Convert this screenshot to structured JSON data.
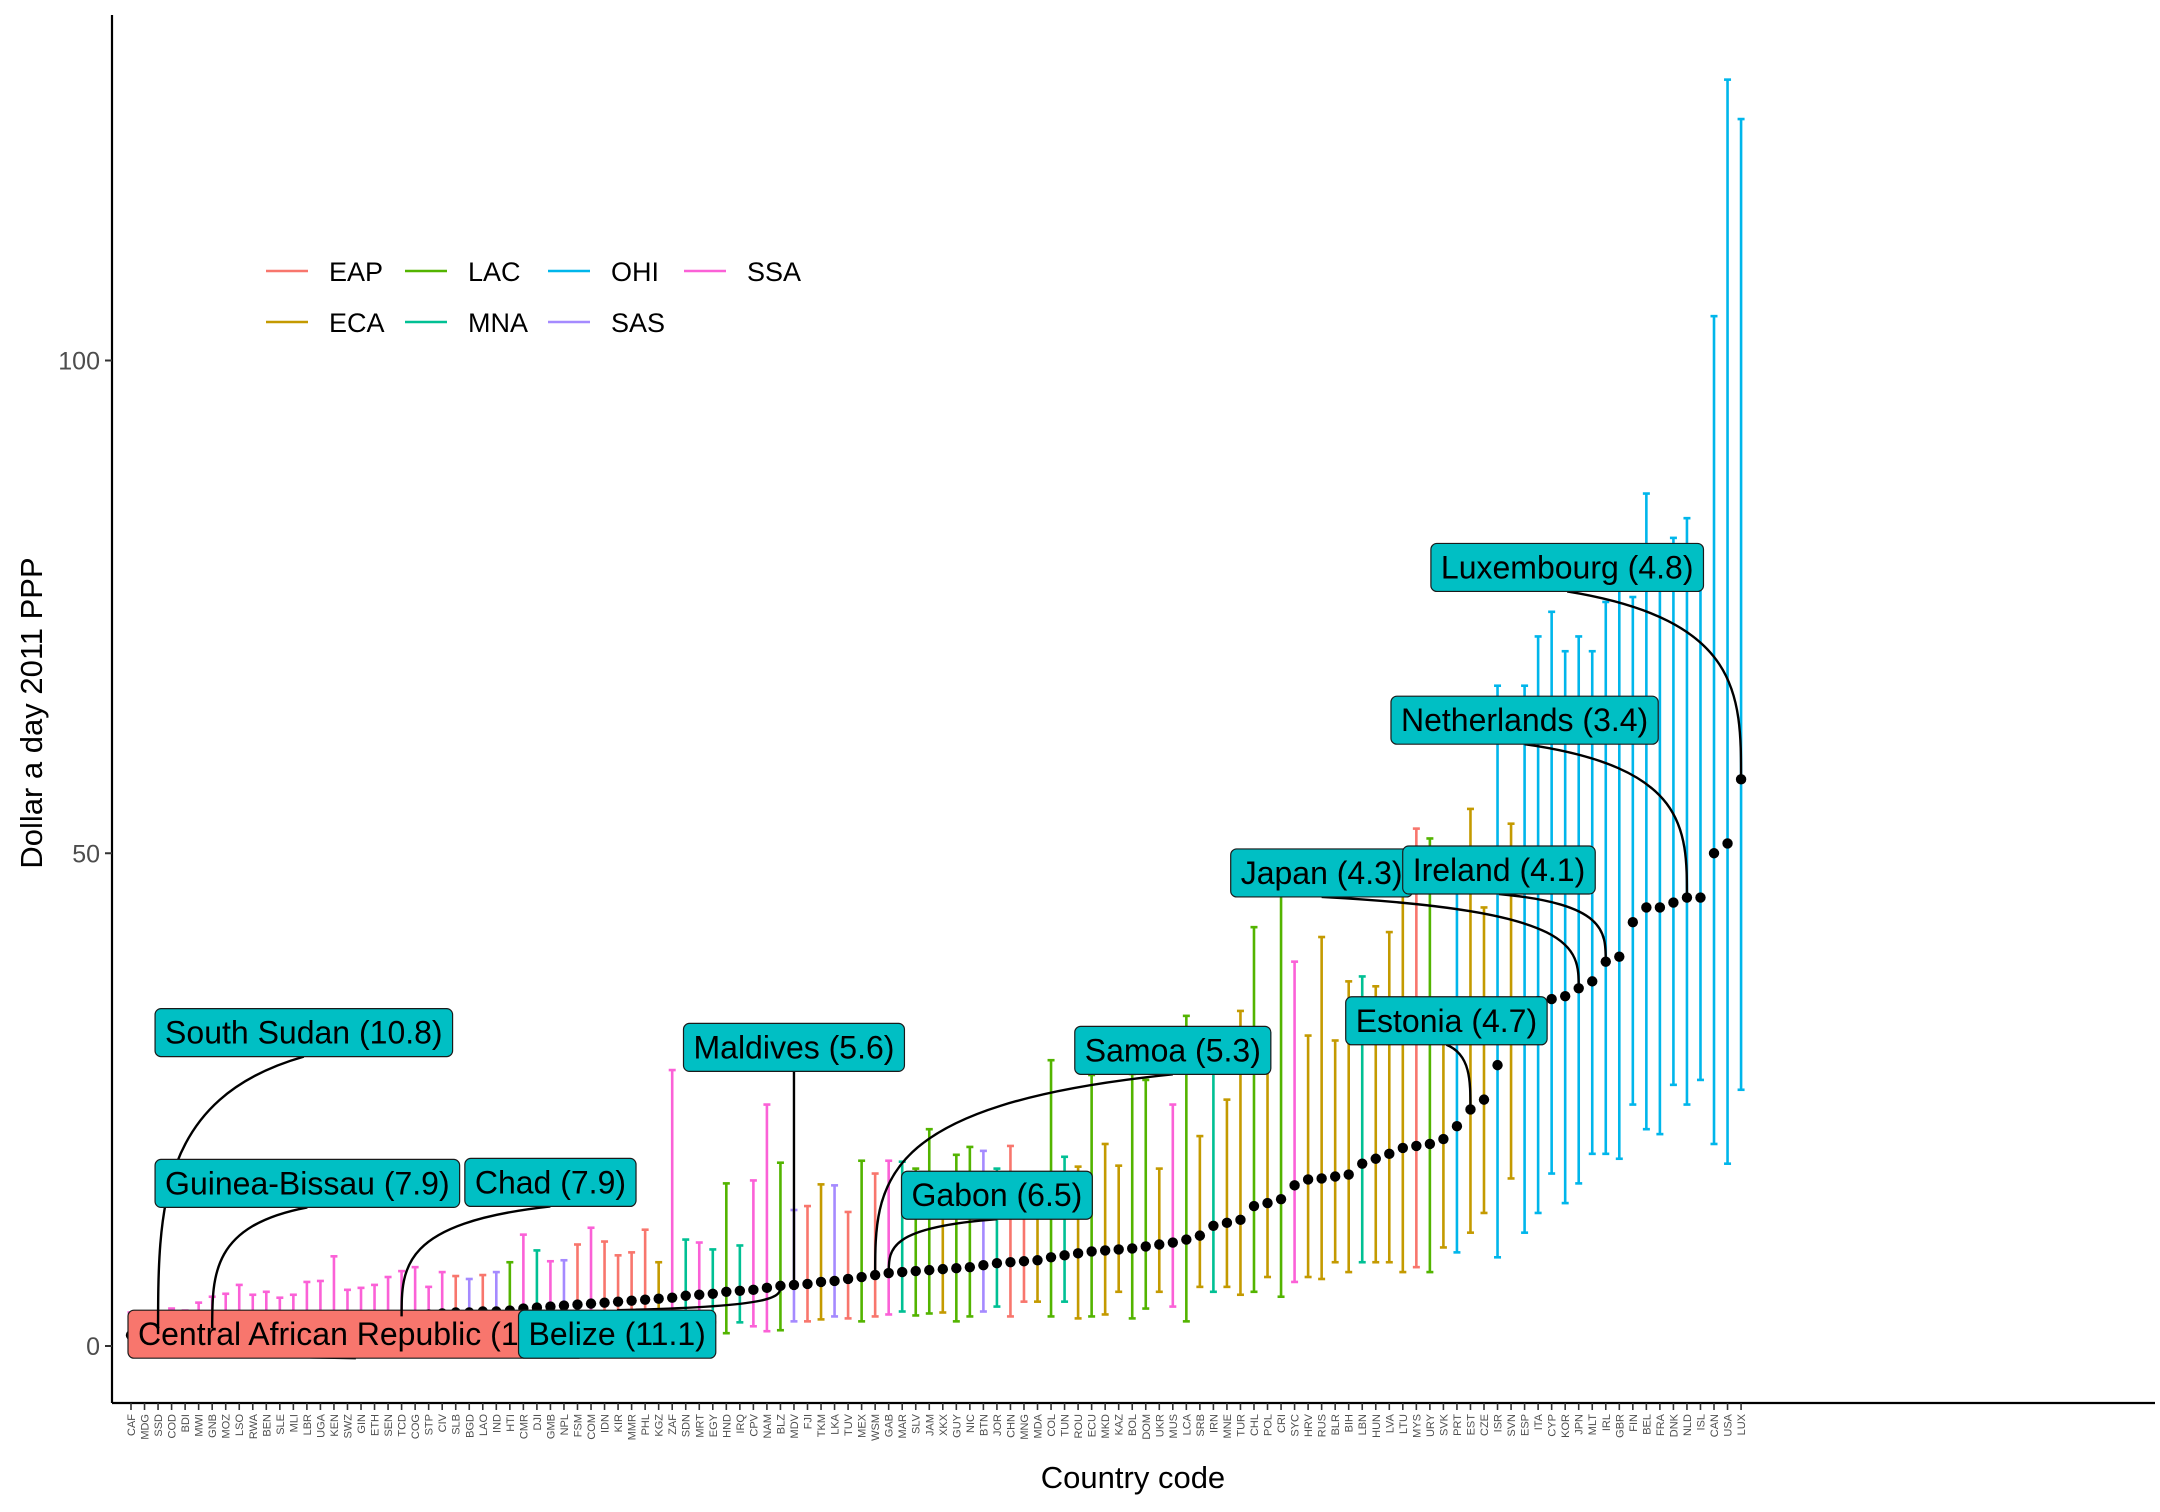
{
  "chart_data": {
    "type": "scatter",
    "title": "",
    "xlabel": "Country code",
    "ylabel": "Dollar a day 2011 PPP",
    "ylim": [
      -6,
      135
    ],
    "yticks": [
      0,
      50,
      100
    ],
    "grid": false,
    "legend_position": "top-left",
    "legend": [
      {
        "name": "EAP",
        "color": "#F8766D"
      },
      {
        "name": "ECA",
        "color": "#C49A00"
      },
      {
        "name": "LAC",
        "color": "#53B400"
      },
      {
        "name": "MNA",
        "color": "#00C094"
      },
      {
        "name": "OHI",
        "color": "#00B6EB"
      },
      {
        "name": "SAS",
        "color": "#A58AFF"
      },
      {
        "name": "SSA",
        "color": "#FB61D7"
      }
    ],
    "point_color": "#000000",
    "countries": [
      {
        "code": "CAF",
        "region": "SSA",
        "y": 1.1,
        "lo": 0.3,
        "hi": 3.4
      },
      {
        "code": "MDG",
        "region": "SSA",
        "y": 1.2,
        "lo": 0.4,
        "hi": 3.2
      },
      {
        "code": "SSD",
        "region": "SSA",
        "y": 1.2,
        "lo": 0.4,
        "hi": 3.5
      },
      {
        "code": "COD",
        "region": "SSA",
        "y": 1.5,
        "lo": 0.5,
        "hi": 3.8
      },
      {
        "code": "BDI",
        "region": "SSA",
        "y": 1.6,
        "lo": 0.5,
        "hi": 3.6
      },
      {
        "code": "MWI",
        "region": "SSA",
        "y": 1.7,
        "lo": 0.6,
        "hi": 4.4
      },
      {
        "code": "GNB",
        "region": "SSA",
        "y": 1.8,
        "lo": 0.6,
        "hi": 5.0
      },
      {
        "code": "MOZ",
        "region": "SSA",
        "y": 1.9,
        "lo": 0.6,
        "hi": 5.3
      },
      {
        "code": "LSO",
        "region": "SSA",
        "y": 2.0,
        "lo": 0.5,
        "hi": 6.2
      },
      {
        "code": "RWA",
        "region": "SSA",
        "y": 2.1,
        "lo": 0.7,
        "hi": 5.2
      },
      {
        "code": "BEN",
        "region": "SSA",
        "y": 2.2,
        "lo": 0.8,
        "hi": 5.5
      },
      {
        "code": "SLE",
        "region": "SSA",
        "y": 2.3,
        "lo": 0.8,
        "hi": 4.9
      },
      {
        "code": "MLI",
        "region": "SSA",
        "y": 2.4,
        "lo": 0.9,
        "hi": 5.2
      },
      {
        "code": "LBR",
        "region": "SSA",
        "y": 2.4,
        "lo": 0.8,
        "hi": 6.5
      },
      {
        "code": "UGA",
        "region": "SSA",
        "y": 2.5,
        "lo": 0.9,
        "hi": 6.6
      },
      {
        "code": "KEN",
        "region": "SSA",
        "y": 2.6,
        "lo": 0.8,
        "hi": 9.1
      },
      {
        "code": "SWZ",
        "region": "SSA",
        "y": 2.7,
        "lo": 0.8,
        "hi": 5.7
      },
      {
        "code": "GIN",
        "region": "SSA",
        "y": 2.8,
        "lo": 1.0,
        "hi": 5.9
      },
      {
        "code": "ETH",
        "region": "SSA",
        "y": 2.9,
        "lo": 1.0,
        "hi": 6.2
      },
      {
        "code": "SEN",
        "region": "SSA",
        "y": 3.0,
        "lo": 1.0,
        "hi": 7.0
      },
      {
        "code": "TCD",
        "region": "SSA",
        "y": 3.0,
        "lo": 1.0,
        "hi": 7.6
      },
      {
        "code": "COG",
        "region": "SSA",
        "y": 3.1,
        "lo": 0.9,
        "hi": 8.0
      },
      {
        "code": "STP",
        "region": "SSA",
        "y": 3.2,
        "lo": 1.2,
        "hi": 6.0
      },
      {
        "code": "CIV",
        "region": "SSA",
        "y": 3.3,
        "lo": 1.1,
        "hi": 7.5
      },
      {
        "code": "SLB",
        "region": "EAP",
        "y": 3.4,
        "lo": 1.2,
        "hi": 7.1
      },
      {
        "code": "BGD",
        "region": "SAS",
        "y": 3.4,
        "lo": 1.5,
        "hi": 6.8
      },
      {
        "code": "LAO",
        "region": "EAP",
        "y": 3.5,
        "lo": 1.3,
        "hi": 7.2
      },
      {
        "code": "IND",
        "region": "SAS",
        "y": 3.5,
        "lo": 1.5,
        "hi": 7.5
      },
      {
        "code": "HTI",
        "region": "LAC",
        "y": 3.6,
        "lo": 0.9,
        "hi": 8.5
      },
      {
        "code": "CMR",
        "region": "SSA",
        "y": 3.8,
        "lo": 1.2,
        "hi": 11.3
      },
      {
        "code": "DJI",
        "region": "MNA",
        "y": 3.9,
        "lo": 1.4,
        "hi": 9.7
      },
      {
        "code": "GMB",
        "region": "SSA",
        "y": 4.0,
        "lo": 1.3,
        "hi": 8.6
      },
      {
        "code": "NPL",
        "region": "SAS",
        "y": 4.1,
        "lo": 1.7,
        "hi": 8.7
      },
      {
        "code": "FSM",
        "region": "EAP",
        "y": 4.2,
        "lo": 1.4,
        "hi": 10.3
      },
      {
        "code": "COM",
        "region": "SSA",
        "y": 4.3,
        "lo": 1.4,
        "hi": 12.0
      },
      {
        "code": "IDN",
        "region": "EAP",
        "y": 4.4,
        "lo": 1.8,
        "hi": 10.6
      },
      {
        "code": "KIR",
        "region": "EAP",
        "y": 4.5,
        "lo": 1.7,
        "hi": 9.2
      },
      {
        "code": "MMR",
        "region": "EAP",
        "y": 4.6,
        "lo": 1.8,
        "hi": 9.5
      },
      {
        "code": "PHL",
        "region": "EAP",
        "y": 4.7,
        "lo": 1.7,
        "hi": 11.8
      },
      {
        "code": "KGZ",
        "region": "ECA",
        "y": 4.8,
        "lo": 2.5,
        "hi": 8.5
      },
      {
        "code": "ZAF",
        "region": "SSA",
        "y": 4.9,
        "lo": 1.2,
        "hi": 28.0
      },
      {
        "code": "SDN",
        "region": "MNA",
        "y": 5.1,
        "lo": 2.0,
        "hi": 10.8
      },
      {
        "code": "MRT",
        "region": "SSA",
        "y": 5.2,
        "lo": 2.0,
        "hi": 10.5
      },
      {
        "code": "EGY",
        "region": "MNA",
        "y": 5.3,
        "lo": 2.4,
        "hi": 9.8
      },
      {
        "code": "HND",
        "region": "LAC",
        "y": 5.5,
        "lo": 1.3,
        "hi": 16.5
      },
      {
        "code": "IRQ",
        "region": "MNA",
        "y": 5.6,
        "lo": 2.4,
        "hi": 10.2
      },
      {
        "code": "CPV",
        "region": "SSA",
        "y": 5.7,
        "lo": 2.0,
        "hi": 16.8
      },
      {
        "code": "NAM",
        "region": "SSA",
        "y": 5.9,
        "lo": 1.5,
        "hi": 24.5
      },
      {
        "code": "BLZ",
        "region": "LAC",
        "y": 6.1,
        "lo": 1.6,
        "hi": 18.6
      },
      {
        "code": "MDV",
        "region": "SAS",
        "y": 6.2,
        "lo": 2.5,
        "hi": 13.8
      },
      {
        "code": "FJI",
        "region": "EAP",
        "y": 6.3,
        "lo": 2.5,
        "hi": 14.2
      },
      {
        "code": "TKM",
        "region": "ECA",
        "y": 6.5,
        "lo": 2.7,
        "hi": 16.4
      },
      {
        "code": "LKA",
        "region": "SAS",
        "y": 6.6,
        "lo": 3.0,
        "hi": 16.3
      },
      {
        "code": "TUV",
        "region": "EAP",
        "y": 6.8,
        "lo": 2.8,
        "hi": 13.6
      },
      {
        "code": "MEX",
        "region": "LAC",
        "y": 7.0,
        "lo": 2.5,
        "hi": 18.8
      },
      {
        "code": "WSM",
        "region": "EAP",
        "y": 7.2,
        "lo": 3.0,
        "hi": 17.5
      },
      {
        "code": "GAB",
        "region": "SSA",
        "y": 7.4,
        "lo": 3.2,
        "hi": 18.8
      },
      {
        "code": "MAR",
        "region": "MNA",
        "y": 7.5,
        "lo": 3.5,
        "hi": 18.7
      },
      {
        "code": "SLV",
        "region": "LAC",
        "y": 7.6,
        "lo": 3.1,
        "hi": 18.0
      },
      {
        "code": "JAM",
        "region": "LAC",
        "y": 7.7,
        "lo": 3.3,
        "hi": 22.0
      },
      {
        "code": "XKX",
        "region": "ECA",
        "y": 7.8,
        "lo": 3.4,
        "hi": 16.8
      },
      {
        "code": "GUY",
        "region": "LAC",
        "y": 7.9,
        "lo": 2.5,
        "hi": 19.4
      },
      {
        "code": "NIC",
        "region": "LAC",
        "y": 8.0,
        "lo": 3.0,
        "hi": 20.2
      },
      {
        "code": "BTN",
        "region": "SAS",
        "y": 8.2,
        "lo": 3.5,
        "hi": 19.8
      },
      {
        "code": "JOR",
        "region": "MNA",
        "y": 8.4,
        "lo": 4.0,
        "hi": 18.0
      },
      {
        "code": "CHN",
        "region": "EAP",
        "y": 8.5,
        "lo": 3.0,
        "hi": 20.3
      },
      {
        "code": "MNG",
        "region": "EAP",
        "y": 8.6,
        "lo": 4.5,
        "hi": 16.0
      },
      {
        "code": "MDA",
        "region": "ECA",
        "y": 8.7,
        "lo": 4.5,
        "hi": 16.8
      },
      {
        "code": "COL",
        "region": "LAC",
        "y": 9.0,
        "lo": 3.0,
        "hi": 29.0
      },
      {
        "code": "TUN",
        "region": "MNA",
        "y": 9.2,
        "lo": 4.5,
        "hi": 19.2
      },
      {
        "code": "ROU",
        "region": "ECA",
        "y": 9.4,
        "lo": 2.8,
        "hi": 18.2
      },
      {
        "code": "ECU",
        "region": "LAC",
        "y": 9.6,
        "lo": 3.0,
        "hi": 27.5
      },
      {
        "code": "MKD",
        "region": "ECA",
        "y": 9.7,
        "lo": 3.2,
        "hi": 20.5
      },
      {
        "code": "KAZ",
        "region": "ECA",
        "y": 9.8,
        "lo": 5.5,
        "hi": 18.3
      },
      {
        "code": "BOL",
        "region": "LAC",
        "y": 9.9,
        "lo": 2.8,
        "hi": 27.6
      },
      {
        "code": "DOM",
        "region": "LAC",
        "y": 10.1,
        "lo": 3.8,
        "hi": 27.0
      },
      {
        "code": "UKR",
        "region": "ECA",
        "y": 10.3,
        "lo": 5.5,
        "hi": 18.0
      },
      {
        "code": "MUS",
        "region": "SSA",
        "y": 10.5,
        "lo": 4.0,
        "hi": 24.5
      },
      {
        "code": "LCA",
        "region": "LAC",
        "y": 10.8,
        "lo": 2.5,
        "hi": 33.5
      },
      {
        "code": "SRB",
        "region": "ECA",
        "y": 11.2,
        "lo": 6.0,
        "hi": 21.3
      },
      {
        "code": "IRN",
        "region": "MNA",
        "y": 12.2,
        "lo": 5.5,
        "hi": 28.0
      },
      {
        "code": "MNE",
        "region": "ECA",
        "y": 12.5,
        "lo": 6.0,
        "hi": 25.0
      },
      {
        "code": "TUR",
        "region": "ECA",
        "y": 12.8,
        "lo": 5.2,
        "hi": 34.0
      },
      {
        "code": "CHL",
        "region": "LAC",
        "y": 14.2,
        "lo": 5.5,
        "hi": 42.5
      },
      {
        "code": "POL",
        "region": "ECA",
        "y": 14.5,
        "lo": 7.0,
        "hi": 29.5
      },
      {
        "code": "CRI",
        "region": "LAC",
        "y": 14.9,
        "lo": 5.0,
        "hi": 46.5
      },
      {
        "code": "SYC",
        "region": "SSA",
        "y": 16.3,
        "lo": 6.5,
        "hi": 39.0
      },
      {
        "code": "HRV",
        "region": "ECA",
        "y": 16.9,
        "lo": 7.0,
        "hi": 31.5
      },
      {
        "code": "RUS",
        "region": "ECA",
        "y": 17.0,
        "lo": 6.8,
        "hi": 41.5
      },
      {
        "code": "BLR",
        "region": "ECA",
        "y": 17.2,
        "lo": 8.5,
        "hi": 31.0
      },
      {
        "code": "BIH",
        "region": "ECA",
        "y": 17.4,
        "lo": 7.5,
        "hi": 37.0
      },
      {
        "code": "LBN",
        "region": "MNA",
        "y": 18.5,
        "lo": 8.5,
        "hi": 37.5
      },
      {
        "code": "HUN",
        "region": "ECA",
        "y": 19.0,
        "lo": 8.5,
        "hi": 36.5
      },
      {
        "code": "LVA",
        "region": "ECA",
        "y": 19.5,
        "lo": 8.5,
        "hi": 42.0
      },
      {
        "code": "LTU",
        "region": "ECA",
        "y": 20.1,
        "lo": 7.5,
        "hi": 46.5
      },
      {
        "code": "MYS",
        "region": "EAP",
        "y": 20.3,
        "lo": 8.0,
        "hi": 52.5
      },
      {
        "code": "URY",
        "region": "LAC",
        "y": 20.5,
        "lo": 7.5,
        "hi": 51.5
      },
      {
        "code": "SVK",
        "region": "ECA",
        "y": 21.0,
        "lo": 10.0,
        "hi": 33.0
      },
      {
        "code": "PRT",
        "region": "OHI",
        "y": 22.3,
        "lo": 9.5,
        "hi": 48.5
      },
      {
        "code": "EST",
        "region": "ECA",
        "y": 24.0,
        "lo": 11.5,
        "hi": 54.5
      },
      {
        "code": "CZE",
        "region": "ECA",
        "y": 25.0,
        "lo": 13.5,
        "hi": 44.5
      },
      {
        "code": "ISR",
        "region": "OHI",
        "y": 28.5,
        "lo": 9.0,
        "hi": 67.0
      },
      {
        "code": "SVN",
        "region": "ECA",
        "y": 31.2,
        "lo": 17.0,
        "hi": 53.0
      },
      {
        "code": "ESP",
        "region": "OHI",
        "y": 31.5,
        "lo": 11.5,
        "hi": 67.0
      },
      {
        "code": "ITA",
        "region": "OHI",
        "y": 35.0,
        "lo": 13.5,
        "hi": 72.0
      },
      {
        "code": "CYP",
        "region": "OHI",
        "y": 35.2,
        "lo": 17.5,
        "hi": 74.5
      },
      {
        "code": "KOR",
        "region": "OHI",
        "y": 35.5,
        "lo": 14.5,
        "hi": 70.5
      },
      {
        "code": "JPN",
        "region": "OHI",
        "y": 36.3,
        "lo": 16.5,
        "hi": 72.0
      },
      {
        "code": "MLT",
        "region": "OHI",
        "y": 37.0,
        "lo": 19.5,
        "hi": 70.5
      },
      {
        "code": "IRL",
        "region": "OHI",
        "y": 39.0,
        "lo": 19.5,
        "hi": 75.5
      },
      {
        "code": "GBR",
        "region": "OHI",
        "y": 39.5,
        "lo": 19.0,
        "hi": 77.5
      },
      {
        "code": "FIN",
        "region": "OHI",
        "y": 43.0,
        "lo": 24.5,
        "hi": 76.0
      },
      {
        "code": "BEL",
        "region": "OHI",
        "y": 44.5,
        "lo": 22.0,
        "hi": 86.5
      },
      {
        "code": "FRA",
        "region": "OHI",
        "y": 44.5,
        "lo": 21.5,
        "hi": 80.0
      },
      {
        "code": "DNK",
        "region": "OHI",
        "y": 45.0,
        "lo": 26.5,
        "hi": 82.0
      },
      {
        "code": "NLD",
        "region": "OHI",
        "y": 45.5,
        "lo": 24.5,
        "hi": 84.0
      },
      {
        "code": "ISL",
        "region": "OHI",
        "y": 45.5,
        "lo": 27.0,
        "hi": 78.5
      },
      {
        "code": "CAN",
        "region": "OHI",
        "y": 50.0,
        "lo": 20.5,
        "hi": 104.5
      },
      {
        "code": "USA",
        "region": "OHI",
        "y": 51.0,
        "lo": 18.5,
        "hi": 128.5
      },
      {
        "code": "LUX",
        "region": "OHI",
        "y": 57.5,
        "lo": 26.0,
        "hi": 124.5
      }
    ],
    "annotations": [
      {
        "label": "Central African Republic (10.9)",
        "target": "CAF",
        "fill": "#F8766D",
        "lx": "CAF",
        "ly": 1.2,
        "anchor": "start"
      },
      {
        "label": "South Sudan (10.8)",
        "target": "SSD",
        "fill": "#00BFC4",
        "lx": "SSD",
        "ly": 31.8,
        "anchor": "start"
      },
      {
        "label": "Guinea-Bissau (7.9)",
        "target": "GNB",
        "fill": "#00BFC4",
        "lx": "SSD",
        "ly": 16.5,
        "anchor": "start"
      },
      {
        "label": "Chad (7.9)",
        "target": "TCD",
        "fill": "#00BFC4",
        "lx": "GMB",
        "ly": 16.6,
        "anchor": "middle"
      },
      {
        "label": "Belize (11.1)",
        "target": "BLZ",
        "fill": "#00BFC4",
        "lx": "EGY",
        "ly": 1.2,
        "anchor": "end"
      },
      {
        "label": "Maldives (5.6)",
        "target": "MDV",
        "fill": "#00BFC4",
        "lx": "MDV",
        "ly": 30.3,
        "anchor": "middle"
      },
      {
        "label": "Gabon (6.5)",
        "target": "GAB",
        "fill": "#00BFC4",
        "lx": "JOR",
        "ly": 15.3,
        "anchor": "middle"
      },
      {
        "label": "Samoa (5.3)",
        "target": "WSM",
        "fill": "#00BFC4",
        "lx": "MUS",
        "ly": 30.0,
        "anchor": "middle"
      },
      {
        "label": "Japan (4.3)",
        "target": "JPN",
        "fill": "#00BFC4",
        "lx": "RUS",
        "ly": 48.0,
        "anchor": "middle"
      },
      {
        "label": "Estonia (4.7)",
        "target": "EST",
        "fill": "#00BFC4",
        "lx": "BIH",
        "ly": 33.0,
        "anchor": "start"
      },
      {
        "label": "Ireland (4.1)",
        "target": "IRL",
        "fill": "#00BFC4",
        "lx": "MLT",
        "ly": 48.3,
        "anchor": "end"
      },
      {
        "label": "Netherlands (3.4)",
        "target": "NLD",
        "fill": "#00BFC4",
        "lx": "ESP",
        "ly": 63.5,
        "anchor": "middle"
      },
      {
        "label": "Luxembourg (4.8)",
        "target": "LUX",
        "fill": "#00BFC4",
        "lx": "ISL",
        "ly": 79.0,
        "anchor": "end"
      }
    ]
  }
}
